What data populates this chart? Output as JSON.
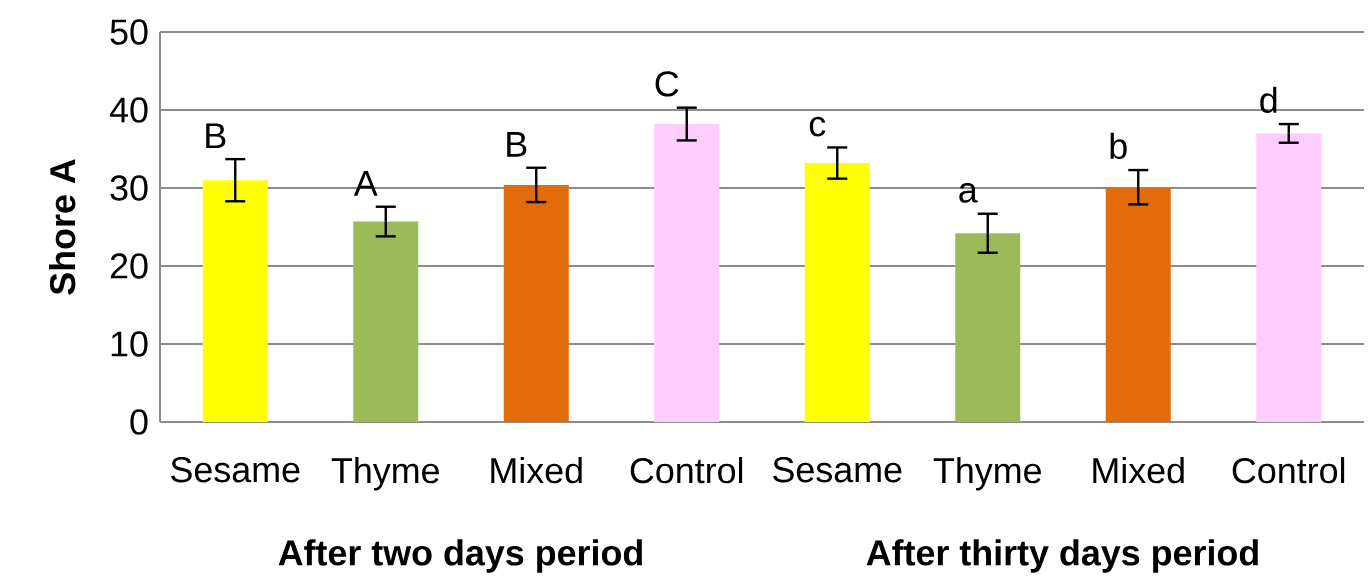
{
  "chart_data": {
    "type": "bar",
    "ylabel": "Shore A",
    "categories": [
      "Sesame",
      "Thyme",
      "Mixed",
      "Control",
      "Sesame",
      "Thyme",
      "Mixed",
      "Control"
    ],
    "values": [
      31.0,
      25.7,
      30.4,
      38.2,
      33.2,
      24.2,
      30.1,
      37.0
    ],
    "errors": [
      2.7,
      1.9,
      2.2,
      2.1,
      2.0,
      2.5,
      2.2,
      1.2
    ],
    "colors": [
      "#ffff00",
      "#9bbb59",
      "#e36c0a",
      "#ffccff",
      "#ffff00",
      "#9bbb59",
      "#e36c0a",
      "#ffccff"
    ],
    "value_labels": [
      "B",
      "A",
      "B",
      "C",
      "c",
      "a",
      "b",
      "d"
    ],
    "annotations": [
      "After two days period",
      "After thirty days period"
    ],
    "ylim": [
      0,
      50
    ],
    "yticks": [
      0,
      10,
      20,
      30,
      40,
      50
    ],
    "grid": "y"
  }
}
